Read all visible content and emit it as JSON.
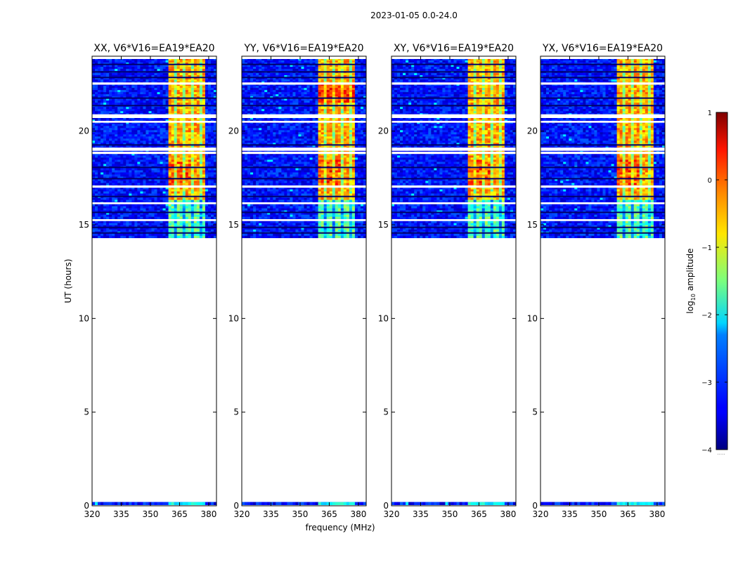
{
  "suptitle": "2023-01-05 0.0-24.0",
  "xlabel": "frequency (MHz)",
  "ylabel": "UT (hours)",
  "chart_data": {
    "type": "heatmap",
    "title": "2023-01-05 0.0-24.0",
    "xlabel": "frequency (MHz)",
    "ylabel": "UT (hours)",
    "xlim": [
      320,
      384
    ],
    "ylim": [
      0,
      24
    ],
    "xticks": [
      320,
      335,
      350,
      365,
      380
    ],
    "yticks": [
      0,
      5,
      10,
      15,
      20
    ],
    "panels": [
      {
        "title": "XX, V6*V16=EA19*EA20"
      },
      {
        "title": "YY, V6*V16=EA19*EA20"
      },
      {
        "title": "XY, V6*V16=EA19*EA20"
      },
      {
        "title": "YX, V6*V16=EA19*EA20"
      }
    ],
    "data_time_ranges_hours": [
      [
        0.05,
        0.2
      ],
      [
        14.3,
        24.0
      ]
    ],
    "flagged_gap_hours": [
      [
        0.2,
        14.3
      ]
    ],
    "background_log10_amplitude": -3.3,
    "bright_band_mhz": [
      360,
      378
    ],
    "bright_band_log10_amplitude": [
      -1.5,
      0.2
    ],
    "colorbar": {
      "label": "log10 amplitude",
      "label_main": "log",
      "label_sub": "10",
      "label_rest": " amplitude",
      "vmin": -4,
      "vmax": 1,
      "ticks": [
        -4,
        -3,
        -2,
        -1,
        0,
        1
      ],
      "tick_labels": [
        "−4",
        "−3",
        "−2",
        "−1",
        "0",
        "1"
      ],
      "colormap": "jet",
      "under_marker": "....."
    }
  }
}
